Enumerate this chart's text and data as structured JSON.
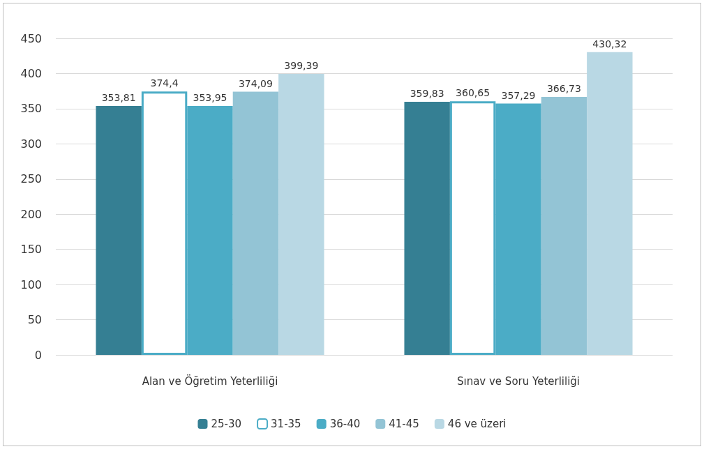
{
  "chart_data": {
    "type": "bar",
    "categories": [
      "Alan ve Öğretim Yeterliliği",
      "Sınav ve Soru Yeterliliği"
    ],
    "series": [
      {
        "name": "25-30",
        "color": "#357f93",
        "values": [
          353.81,
          359.83
        ],
        "value_labels": [
          "353,81",
          "359,83"
        ]
      },
      {
        "name": "31-35",
        "color": "#ffffff",
        "values": [
          374.4,
          360.65
        ],
        "value_labels": [
          "374,4",
          "360,65"
        ]
      },
      {
        "name": "36-40",
        "color": "#4bacc6",
        "values": [
          353.95,
          357.29
        ],
        "value_labels": [
          "353,95",
          "357,29"
        ]
      },
      {
        "name": "41-45",
        "color": "#93c4d5",
        "values": [
          374.09,
          366.73
        ],
        "value_labels": [
          "374,09",
          "366,73"
        ]
      },
      {
        "name": "46 ve üzeri",
        "color": "#b9d8e4",
        "values": [
          399.39,
          430.32
        ],
        "value_labels": [
          "399,39",
          "430,32"
        ]
      }
    ],
    "ylim": [
      0,
      450
    ],
    "yticks": [
      0,
      50,
      100,
      150,
      200,
      250,
      300,
      350,
      400,
      450
    ],
    "grid": "y",
    "legend": "bottom"
  }
}
